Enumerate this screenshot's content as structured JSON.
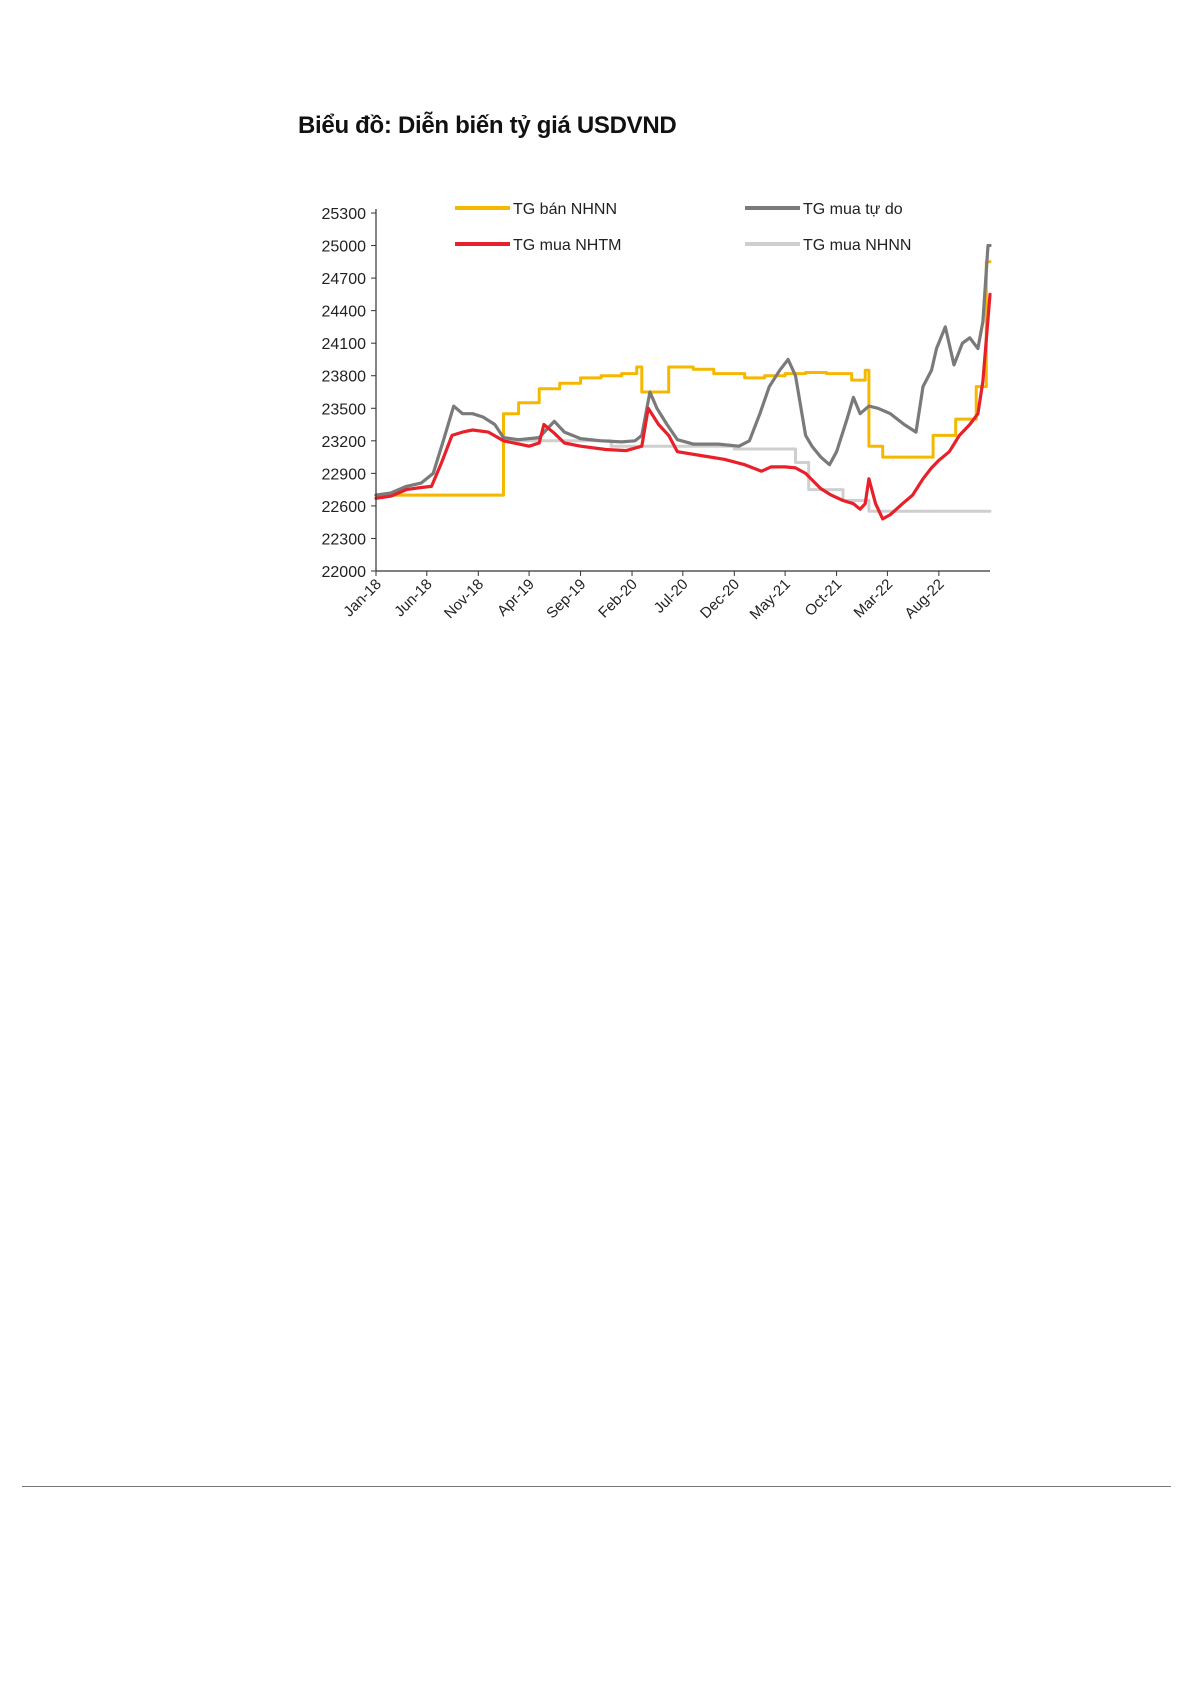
{
  "chart_data": {
    "type": "line",
    "title": "Biểu đồ: Diễn biến tỷ giá USDVND",
    "xlabel": "",
    "ylabel": "",
    "ylim": [
      22000,
      25300
    ],
    "yticks": [
      25300,
      25000,
      24700,
      24400,
      24100,
      23800,
      23500,
      23200,
      22900,
      22600,
      22300,
      22000
    ],
    "xlim": [
      "2018-01-01",
      "2022-12-31"
    ],
    "xticks": [
      {
        "label": "Jan-18",
        "date": "2018-01-01"
      },
      {
        "label": "Jun-18",
        "date": "2018-06-01"
      },
      {
        "label": "Nov-18",
        "date": "2018-11-01"
      },
      {
        "label": "Apr-19",
        "date": "2019-04-01"
      },
      {
        "label": "Sep-19",
        "date": "2019-09-01"
      },
      {
        "label": "Feb-20",
        "date": "2020-02-01"
      },
      {
        "label": "Jul-20",
        "date": "2020-07-01"
      },
      {
        "label": "Dec-20",
        "date": "2020-12-01"
      },
      {
        "label": "May-21",
        "date": "2021-05-01"
      },
      {
        "label": "Oct-21",
        "date": "2021-10-01"
      },
      {
        "label": "Mar-22",
        "date": "2022-03-01"
      },
      {
        "label": "Aug-22",
        "date": "2022-08-01"
      }
    ],
    "grid": false,
    "legend_position": "top",
    "series": [
      {
        "name": "TG mua NHNN",
        "color": "#cfcfcf",
        "step": true,
        "points": [
          [
            "2018-01-01",
            22700
          ],
          [
            "2018-06-01",
            22700
          ],
          [
            "2018-11-01",
            22700
          ],
          [
            "2019-01-15",
            23200
          ],
          [
            "2019-10-01",
            23200
          ],
          [
            "2019-12-01",
            23150
          ],
          [
            "2020-03-15",
            23150
          ],
          [
            "2020-06-01",
            23150
          ],
          [
            "2020-11-01",
            23150
          ],
          [
            "2020-12-01",
            23125
          ],
          [
            "2021-05-01",
            23125
          ],
          [
            "2021-06-01",
            23000
          ],
          [
            "2021-07-10",
            22750
          ],
          [
            "2021-10-20",
            22650
          ],
          [
            "2022-01-05",
            22550
          ],
          [
            "2022-12-31",
            22550
          ]
        ]
      },
      {
        "name": "TG bán NHNN",
        "color": "#f5b800",
        "step": true,
        "points": [
          [
            "2018-01-01",
            22700
          ],
          [
            "2018-11-15",
            22700
          ],
          [
            "2019-01-15",
            23450
          ],
          [
            "2019-03-01",
            23550
          ],
          [
            "2019-05-01",
            23680
          ],
          [
            "2019-07-01",
            23730
          ],
          [
            "2019-09-01",
            23780
          ],
          [
            "2019-11-01",
            23800
          ],
          [
            "2020-01-01",
            23820
          ],
          [
            "2020-02-15",
            23880
          ],
          [
            "2020-03-01",
            23650
          ],
          [
            "2020-05-15",
            23650
          ],
          [
            "2020-05-20",
            23880
          ],
          [
            "2020-08-01",
            23860
          ],
          [
            "2020-10-01",
            23820
          ],
          [
            "2021-01-01",
            23780
          ],
          [
            "2021-03-01",
            23800
          ],
          [
            "2021-05-01",
            23820
          ],
          [
            "2021-07-01",
            23830
          ],
          [
            "2021-09-01",
            23820
          ],
          [
            "2021-11-15",
            23760
          ],
          [
            "2021-12-25",
            23850
          ],
          [
            "2022-01-05",
            23150
          ],
          [
            "2022-02-15",
            23050
          ],
          [
            "2022-07-01",
            23050
          ],
          [
            "2022-07-15",
            23250
          ],
          [
            "2022-09-01",
            23250
          ],
          [
            "2022-09-20",
            23400
          ],
          [
            "2022-11-01",
            23400
          ],
          [
            "2022-11-20",
            23700
          ],
          [
            "2022-12-20",
            24850
          ],
          [
            "2022-12-31",
            24850
          ]
        ]
      },
      {
        "name": "TG mua tự do",
        "color": "#7a7a7a",
        "step": false,
        "points": [
          [
            "2018-01-01",
            22700
          ],
          [
            "2018-02-15",
            22720
          ],
          [
            "2018-04-01",
            22780
          ],
          [
            "2018-05-15",
            22810
          ],
          [
            "2018-06-20",
            22900
          ],
          [
            "2018-07-20",
            23200
          ],
          [
            "2018-08-20",
            23520
          ],
          [
            "2018-09-15",
            23450
          ],
          [
            "2018-10-15",
            23450
          ],
          [
            "2018-11-15",
            23420
          ],
          [
            "2018-12-20",
            23350
          ],
          [
            "2019-01-15",
            23230
          ],
          [
            "2019-03-01",
            23210
          ],
          [
            "2019-05-01",
            23230
          ],
          [
            "2019-06-15",
            23380
          ],
          [
            "2019-07-15",
            23280
          ],
          [
            "2019-09-01",
            23220
          ],
          [
            "2019-11-01",
            23200
          ],
          [
            "2020-01-01",
            23190
          ],
          [
            "2020-02-10",
            23200
          ],
          [
            "2020-03-01",
            23250
          ],
          [
            "2020-03-25",
            23650
          ],
          [
            "2020-04-15",
            23500
          ],
          [
            "2020-05-15",
            23350
          ],
          [
            "2020-06-15",
            23210
          ],
          [
            "2020-08-01",
            23170
          ],
          [
            "2020-10-15",
            23170
          ],
          [
            "2020-12-15",
            23150
          ],
          [
            "2021-01-15",
            23200
          ],
          [
            "2021-02-15",
            23450
          ],
          [
            "2021-03-15",
            23700
          ],
          [
            "2021-04-15",
            23850
          ],
          [
            "2021-05-10",
            23950
          ],
          [
            "2021-06-01",
            23800
          ],
          [
            "2021-07-01",
            23250
          ],
          [
            "2021-07-20",
            23150
          ],
          [
            "2021-08-15",
            23050
          ],
          [
            "2021-09-10",
            22980
          ],
          [
            "2021-10-01",
            23100
          ],
          [
            "2021-11-01",
            23400
          ],
          [
            "2021-11-20",
            23600
          ],
          [
            "2021-12-10",
            23450
          ],
          [
            "2022-01-05",
            23520
          ],
          [
            "2022-02-01",
            23500
          ],
          [
            "2022-03-10",
            23450
          ],
          [
            "2022-04-20",
            23350
          ],
          [
            "2022-05-25",
            23280
          ],
          [
            "2022-06-15",
            23700
          ],
          [
            "2022-07-10",
            23850
          ],
          [
            "2022-07-25",
            24050
          ],
          [
            "2022-08-20",
            24250
          ],
          [
            "2022-09-15",
            23900
          ],
          [
            "2022-10-10",
            24100
          ],
          [
            "2022-11-01",
            24150
          ],
          [
            "2022-11-25",
            24050
          ],
          [
            "2022-12-10",
            24300
          ],
          [
            "2022-12-25",
            25000
          ],
          [
            "2022-12-31",
            25000
          ]
        ]
      },
      {
        "name": "TG mua NHTM",
        "color": "#e8202a",
        "step": false,
        "points": [
          [
            "2018-01-01",
            22670
          ],
          [
            "2018-02-15",
            22690
          ],
          [
            "2018-04-01",
            22750
          ],
          [
            "2018-05-15",
            22770
          ],
          [
            "2018-06-15",
            22780
          ],
          [
            "2018-07-15",
            23000
          ],
          [
            "2018-08-15",
            23250
          ],
          [
            "2018-09-15",
            23280
          ],
          [
            "2018-10-15",
            23300
          ],
          [
            "2018-12-01",
            23280
          ],
          [
            "2019-01-15",
            23200
          ],
          [
            "2019-04-01",
            23150
          ],
          [
            "2019-05-01",
            23180
          ],
          [
            "2019-05-15",
            23350
          ],
          [
            "2019-06-15",
            23270
          ],
          [
            "2019-07-15",
            23180
          ],
          [
            "2019-09-01",
            23150
          ],
          [
            "2019-11-15",
            23120
          ],
          [
            "2020-01-15",
            23110
          ],
          [
            "2020-03-01",
            23150
          ],
          [
            "2020-03-20",
            23500
          ],
          [
            "2020-04-20",
            23350
          ],
          [
            "2020-05-20",
            23250
          ],
          [
            "2020-06-15",
            23100
          ],
          [
            "2020-09-01",
            23060
          ],
          [
            "2020-11-01",
            23030
          ],
          [
            "2021-01-01",
            22980
          ],
          [
            "2021-02-20",
            22920
          ],
          [
            "2021-03-20",
            22960
          ],
          [
            "2021-05-01",
            22960
          ],
          [
            "2021-06-01",
            22950
          ],
          [
            "2021-07-01",
            22900
          ],
          [
            "2021-08-15",
            22760
          ],
          [
            "2021-09-15",
            22700
          ],
          [
            "2021-10-20",
            22650
          ],
          [
            "2021-11-20",
            22620
          ],
          [
            "2021-12-10",
            22570
          ],
          [
            "2021-12-25",
            22620
          ],
          [
            "2022-01-05",
            22850
          ],
          [
            "2022-01-25",
            22620
          ],
          [
            "2022-02-15",
            22480
          ],
          [
            "2022-03-10",
            22520
          ],
          [
            "2022-04-15",
            22620
          ],
          [
            "2022-05-15",
            22700
          ],
          [
            "2022-06-15",
            22850
          ],
          [
            "2022-07-10",
            22950
          ],
          [
            "2022-08-01",
            23020
          ],
          [
            "2022-09-01",
            23100
          ],
          [
            "2022-10-01",
            23250
          ],
          [
            "2022-11-01",
            23350
          ],
          [
            "2022-11-25",
            23450
          ],
          [
            "2022-12-10",
            23750
          ],
          [
            "2022-12-31",
            24550
          ]
        ]
      }
    ],
    "legend": [
      {
        "name": "TG bán NHNN",
        "color": "#f5b800"
      },
      {
        "name": "TG mua tự do",
        "color": "#7a7a7a"
      },
      {
        "name": "TG mua NHTM",
        "color": "#e8202a"
      },
      {
        "name": "TG mua NHNN",
        "color": "#cfcfcf"
      }
    ]
  }
}
